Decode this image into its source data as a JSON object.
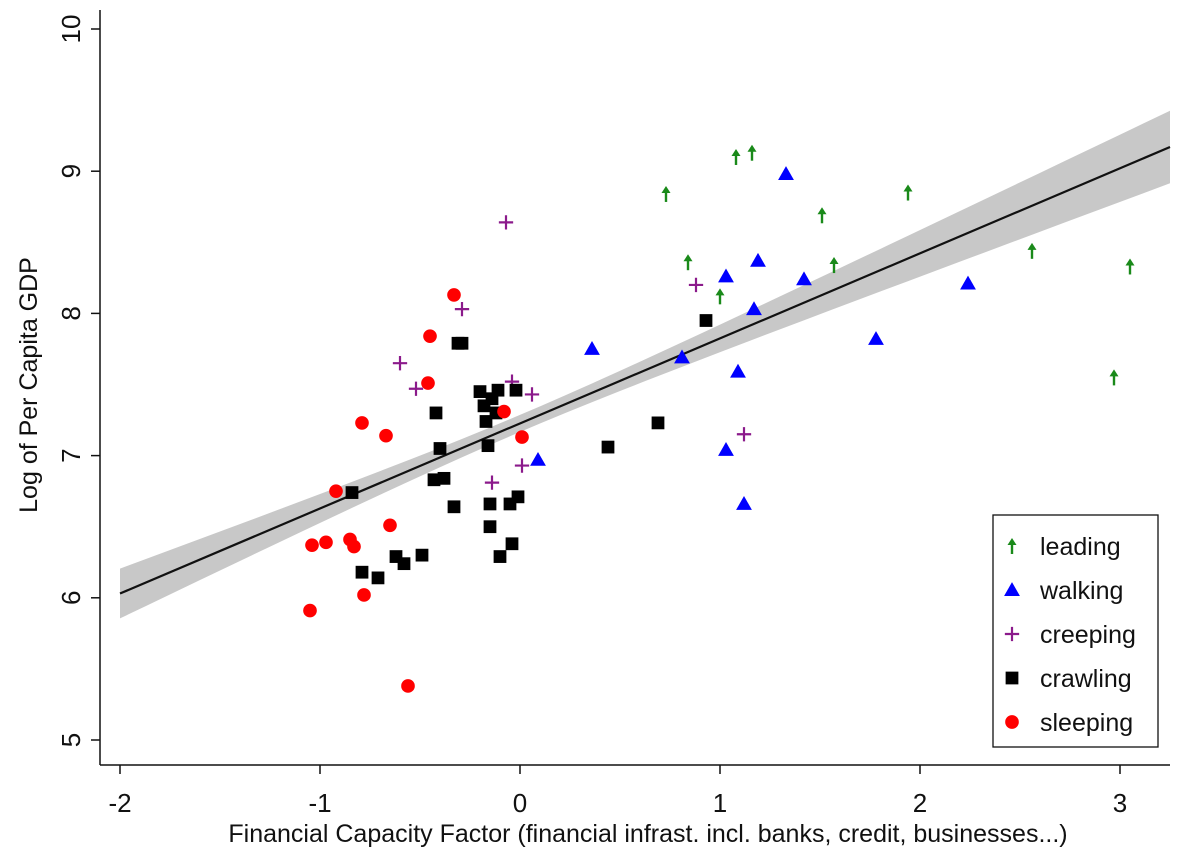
{
  "chart_data": {
    "type": "scatter",
    "title": "",
    "xlabel": "Financial Capacity Factor (financial infrast. incl. banks, credit, businesses...)",
    "ylabel": "Log of Per Capita GDP",
    "xlim": [
      -2.1,
      3.25
    ],
    "ylim": [
      4.9,
      10.15
    ],
    "xticks": [
      -2,
      -1,
      0,
      1,
      2,
      3
    ],
    "yticks": [
      5,
      6,
      7,
      8,
      9,
      10
    ],
    "grid": false,
    "legend_position": "bottom-right",
    "fit_line": {
      "x": [
        -2.0,
        3.25
      ],
      "y": [
        6.03,
        9.17
      ],
      "ci_lower": [
        5.87,
        8.91
      ],
      "ci_upper": [
        6.22,
        9.42
      ]
    },
    "series": [
      {
        "name": "leading",
        "marker": "arrow-up",
        "color": "#1a8a1a",
        "points": [
          [
            0.73,
            8.84
          ],
          [
            0.84,
            8.36
          ],
          [
            1.0,
            8.12
          ],
          [
            1.08,
            9.1
          ],
          [
            1.16,
            9.13
          ],
          [
            1.51,
            8.69
          ],
          [
            1.57,
            8.34
          ],
          [
            1.94,
            8.85
          ],
          [
            2.56,
            8.44
          ],
          [
            2.97,
            7.55
          ],
          [
            3.05,
            8.33
          ]
        ]
      },
      {
        "name": "walking",
        "marker": "triangle",
        "color": "#0000ff",
        "points": [
          [
            0.09,
            6.97
          ],
          [
            0.36,
            7.75
          ],
          [
            0.81,
            7.69
          ],
          [
            1.03,
            8.26
          ],
          [
            1.03,
            7.04
          ],
          [
            1.09,
            7.59
          ],
          [
            1.12,
            6.66
          ],
          [
            1.17,
            8.03
          ],
          [
            1.19,
            8.37
          ],
          [
            1.33,
            8.98
          ],
          [
            1.42,
            8.24
          ],
          [
            1.78,
            7.82
          ],
          [
            2.24,
            8.21
          ]
        ]
      },
      {
        "name": "creeping",
        "marker": "plus",
        "color": "#8b1a8b",
        "points": [
          [
            -0.6,
            7.65
          ],
          [
            -0.52,
            7.47
          ],
          [
            -0.29,
            8.03
          ],
          [
            -0.14,
            6.81
          ],
          [
            -0.07,
            8.64
          ],
          [
            -0.04,
            7.52
          ],
          [
            0.01,
            6.93
          ],
          [
            0.06,
            7.43
          ],
          [
            0.88,
            8.2
          ],
          [
            1.12,
            7.15
          ]
        ]
      },
      {
        "name": "crawling",
        "marker": "square",
        "color": "#000000",
        "points": [
          [
            -0.84,
            6.74
          ],
          [
            -0.79,
            6.18
          ],
          [
            -0.71,
            6.14
          ],
          [
            -0.62,
            6.29
          ],
          [
            -0.58,
            6.24
          ],
          [
            -0.49,
            6.3
          ],
          [
            -0.43,
            6.83
          ],
          [
            -0.42,
            7.3
          ],
          [
            -0.4,
            7.05
          ],
          [
            -0.38,
            6.84
          ],
          [
            -0.33,
            6.64
          ],
          [
            -0.31,
            7.79
          ],
          [
            -0.29,
            7.79
          ],
          [
            -0.2,
            7.45
          ],
          [
            -0.18,
            7.35
          ],
          [
            -0.17,
            7.24
          ],
          [
            -0.16,
            7.07
          ],
          [
            -0.15,
            6.66
          ],
          [
            -0.15,
            6.5
          ],
          [
            -0.14,
            7.4
          ],
          [
            -0.12,
            7.3
          ],
          [
            -0.11,
            7.46
          ],
          [
            -0.1,
            6.29
          ],
          [
            -0.05,
            6.66
          ],
          [
            -0.04,
            6.38
          ],
          [
            -0.02,
            7.46
          ],
          [
            -0.01,
            6.71
          ],
          [
            0.44,
            7.06
          ],
          [
            0.69,
            7.23
          ],
          [
            0.93,
            7.95
          ]
        ]
      },
      {
        "name": "sleeping",
        "marker": "circle",
        "color": "#ff0000",
        "points": [
          [
            -1.05,
            5.91
          ],
          [
            -1.04,
            6.37
          ],
          [
            -0.97,
            6.39
          ],
          [
            -0.92,
            6.75
          ],
          [
            -0.85,
            6.41
          ],
          [
            -0.83,
            6.36
          ],
          [
            -0.79,
            7.23
          ],
          [
            -0.78,
            6.02
          ],
          [
            -0.67,
            7.14
          ],
          [
            -0.65,
            6.51
          ],
          [
            -0.56,
            5.38
          ],
          [
            -0.46,
            7.51
          ],
          [
            -0.45,
            7.84
          ],
          [
            -0.33,
            8.13
          ],
          [
            -0.08,
            7.31
          ],
          [
            0.01,
            7.13
          ]
        ]
      }
    ]
  }
}
